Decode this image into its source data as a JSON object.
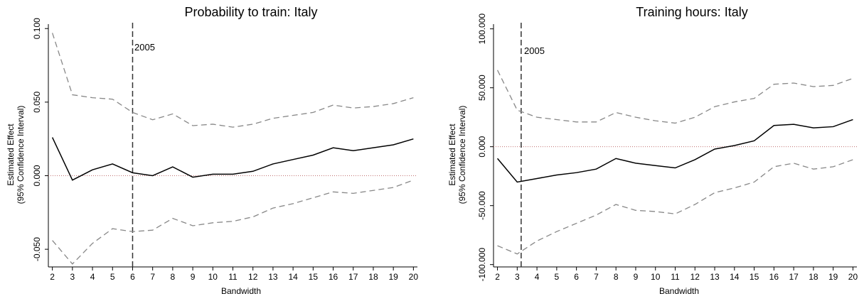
{
  "chart_data": [
    {
      "type": "line",
      "title": "Probability to train: Italy",
      "xlabel": "Bandwidth",
      "ylabel": [
        "Estimated Effect",
        "(95% Confidence Interval)"
      ],
      "x": [
        2,
        3,
        4,
        5,
        6,
        7,
        8,
        9,
        10,
        11,
        12,
        13,
        14,
        15,
        16,
        17,
        18,
        19,
        20
      ],
      "xticks": [
        "2",
        "3",
        "4",
        "5",
        "6",
        "7",
        "8",
        "9",
        "10",
        "11",
        "12",
        "13",
        "14",
        "15",
        "16",
        "17",
        "18",
        "19",
        "20"
      ],
      "xlim": [
        1.8,
        20.2
      ],
      "ylim": [
        -0.062,
        0.103
      ],
      "yticks": [
        {
          "value": -0.05,
          "label": "-0.050"
        },
        {
          "value": 0.0,
          "label": "0.000"
        },
        {
          "value": 0.05,
          "label": "0.050"
        },
        {
          "value": 0.1,
          "label": "0.100"
        }
      ],
      "series": [
        {
          "style": "solid",
          "color": "#000000",
          "values": [
            0.026,
            -0.003,
            0.004,
            0.008,
            0.002,
            0.0,
            0.006,
            -0.001,
            0.001,
            0.001,
            0.003,
            0.008,
            0.011,
            0.014,
            0.019,
            0.017,
            0.019,
            0.021,
            0.025
          ]
        },
        {
          "style": "dashed",
          "color": "#888888",
          "values": [
            0.097,
            0.055,
            0.053,
            0.052,
            0.043,
            0.038,
            0.042,
            0.034,
            0.035,
            0.033,
            0.035,
            0.039,
            0.041,
            0.043,
            0.048,
            0.046,
            0.047,
            0.049,
            0.053
          ]
        },
        {
          "style": "dashed",
          "color": "#888888",
          "values": [
            -0.044,
            -0.06,
            -0.046,
            -0.036,
            -0.038,
            -0.037,
            -0.029,
            -0.034,
            -0.032,
            -0.031,
            -0.028,
            -0.022,
            -0.019,
            -0.015,
            -0.011,
            -0.012,
            -0.01,
            -0.008,
            -0.003
          ]
        }
      ],
      "zero_line": 0,
      "ref_line": {
        "x": 6,
        "label": "2005"
      }
    },
    {
      "type": "line",
      "title": "Training hours: Italy",
      "xlabel": "Bandwidth",
      "ylabel": [
        "Estimated Effect",
        "(95% Confidence Interval)"
      ],
      "x": [
        2,
        3,
        4,
        5,
        6,
        7,
        8,
        9,
        10,
        11,
        12,
        13,
        14,
        15,
        16,
        17,
        18,
        19,
        20
      ],
      "xticks": [
        "2",
        "3",
        "4",
        "5",
        "6",
        "7",
        "8",
        "9",
        "10",
        "11",
        "12",
        "13",
        "14",
        "15",
        "16",
        "17",
        "18",
        "19",
        "20"
      ],
      "xlim": [
        1.8,
        20.2
      ],
      "ylim": [
        -102,
        104
      ],
      "yticks": [
        {
          "value": -100,
          "label": "-100.000"
        },
        {
          "value": -50,
          "label": "-50.000"
        },
        {
          "value": 0,
          "label": "0.000"
        },
        {
          "value": 50,
          "label": "50.000"
        },
        {
          "value": 100,
          "label": "100.000"
        }
      ],
      "series": [
        {
          "style": "solid",
          "color": "#000000",
          "values": [
            -10,
            -30,
            -27,
            -24,
            -22,
            -19,
            -10,
            -14,
            -16,
            -18,
            -11,
            -2,
            1,
            5,
            18,
            19,
            16,
            17,
            23
          ]
        },
        {
          "style": "dashed",
          "color": "#888888",
          "values": [
            65,
            31,
            25,
            23,
            21,
            21,
            29,
            25,
            22,
            20,
            25,
            34,
            38,
            41,
            53,
            54,
            51,
            52,
            58
          ]
        },
        {
          "style": "dashed",
          "color": "#888888",
          "values": [
            -84,
            -91,
            -80,
            -72,
            -65,
            -58,
            -49,
            -54,
            -55,
            -57,
            -49,
            -39,
            -35,
            -30,
            -17,
            -14,
            -19,
            -17,
            -11
          ]
        }
      ],
      "zero_line": 0,
      "ref_line": {
        "x": 3.2,
        "label": "2005"
      }
    }
  ]
}
